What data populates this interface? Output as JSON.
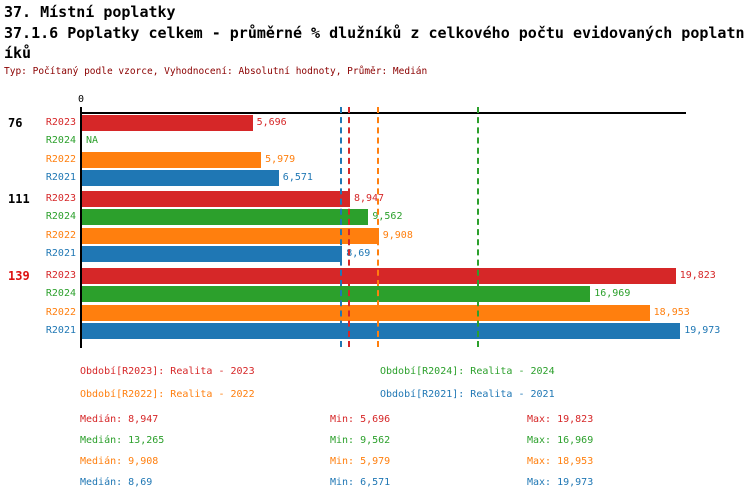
{
  "header": {
    "title_line1": "37. Místní poplatky",
    "title_line2": "37.1.6 Poplatky celkem - průměrné % dlužníků z celkového počtu evidovaných poplatníků",
    "meta": "Typ: Počítaný podle vzorce, Vyhodnocení: Absolutní hodnoty, Průměr: Medián"
  },
  "colors": {
    "R2023": "#d62728",
    "R2024": "#2ca02c",
    "R2022": "#ff7f0e",
    "R2021": "#1f77b4",
    "axis": "#000000",
    "meta_text": "#8b0000",
    "group_label": "#000000",
    "group_label_highlight": "#dd1111"
  },
  "chart_data": {
    "type": "bar",
    "orientation": "horizontal",
    "title": "37.1.6 Poplatky celkem - průměrné % dlužníků z celkového počtu evidovaných poplatníků",
    "xlabel": "",
    "ylabel": "",
    "xlim": [
      0,
      20.2
    ],
    "grid": false,
    "axis": {
      "tick_label": "0",
      "origin_value": 0
    },
    "series_order": [
      "R2023",
      "R2024",
      "R2022",
      "R2021"
    ],
    "groups": [
      {
        "label": "76",
        "highlight": false,
        "bars": [
          {
            "series": "R2023",
            "value": 5.696,
            "label": "5,696"
          },
          {
            "series": "R2024",
            "value": null,
            "label": "NA"
          },
          {
            "series": "R2022",
            "value": 5.979,
            "label": "5,979"
          },
          {
            "series": "R2021",
            "value": 6.571,
            "label": "6,571"
          }
        ]
      },
      {
        "label": "111",
        "highlight": false,
        "bars": [
          {
            "series": "R2023",
            "value": 8.947,
            "label": "8,947"
          },
          {
            "series": "R2024",
            "value": 9.562,
            "label": "9,562"
          },
          {
            "series": "R2022",
            "value": 9.908,
            "label": "9,908"
          },
          {
            "series": "R2021",
            "value": 8.69,
            "label": "8,69"
          }
        ]
      },
      {
        "label": "139",
        "highlight": true,
        "bars": [
          {
            "series": "R2023",
            "value": 19.823,
            "label": "19,823"
          },
          {
            "series": "R2024",
            "value": 16.969,
            "label": "16,969"
          },
          {
            "series": "R2022",
            "value": 18.953,
            "label": "18,953"
          },
          {
            "series": "R2021",
            "value": 19.973,
            "label": "19,973"
          }
        ]
      }
    ],
    "median_lines": [
      {
        "series": "R2021",
        "value": 8.69
      },
      {
        "series": "R2023",
        "value": 8.947
      },
      {
        "series": "R2022",
        "value": 9.908
      },
      {
        "series": "R2024",
        "value": 13.265
      }
    ]
  },
  "legend": [
    {
      "label": "Období[R2023]: Realita - 2023",
      "series": "R2023"
    },
    {
      "label": "Období[R2024]: Realita - 2024",
      "series": "R2024"
    },
    {
      "label": "Období[R2022]: Realita - 2022",
      "series": "R2022"
    },
    {
      "label": "Období[R2021]: Realita - 2021",
      "series": "R2021"
    }
  ],
  "stats": [
    {
      "series": "R2023",
      "median": "Medián: 8,947",
      "min": "Min: 5,696",
      "max": "Max: 19,823"
    },
    {
      "series": "R2024",
      "median": "Medián: 13,265",
      "min": "Min: 9,562",
      "max": "Max: 16,969"
    },
    {
      "series": "R2022",
      "median": "Medián: 9,908",
      "min": "Min: 5,979",
      "max": "Max: 18,953"
    },
    {
      "series": "R2021",
      "median": "Medián: 8,69",
      "min": "Min: 6,571",
      "max": "Max: 19,973"
    }
  ]
}
